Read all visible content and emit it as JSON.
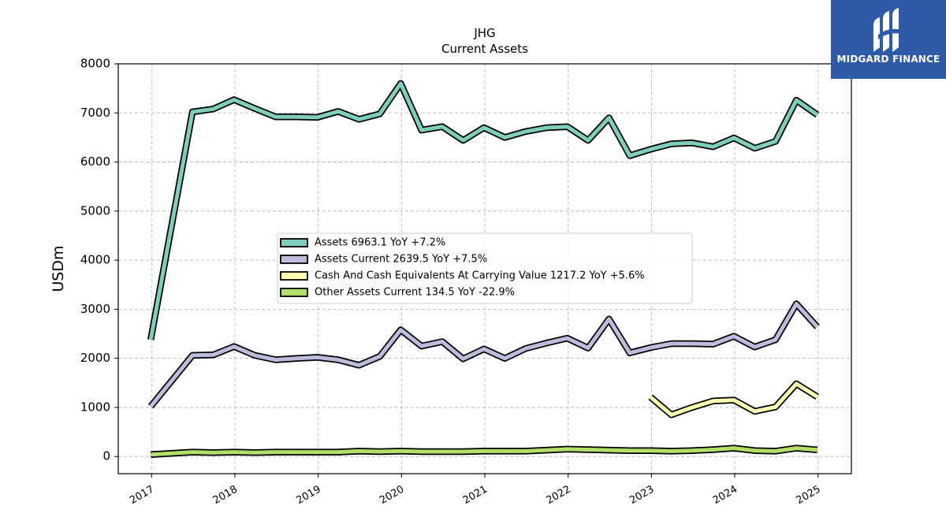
{
  "brand": {
    "name": "MIDGARD FINANCE",
    "color": "#2e5aa8",
    "icon": "midgard-logo-icon"
  },
  "chart_data": {
    "type": "line",
    "title": "JHG",
    "subtitle": "Current  Assets",
    "xlabel": "",
    "ylabel": "USDm",
    "ylim": [
      -350,
      8000
    ],
    "yticks": [
      0,
      1000,
      2000,
      3000,
      4000,
      5000,
      6000,
      7000,
      8000
    ],
    "xlim": [
      2016.6,
      2025.4
    ],
    "xticks": [
      "2017",
      "2018",
      "2019",
      "2020",
      "2021",
      "2022",
      "2023",
      "2024",
      "2025"
    ],
    "grid": true,
    "legend_position": "center",
    "series": [
      {
        "name": "Assets",
        "legend_label": "Assets  6963.1 YoY +7.2%",
        "color": "#7fcdbb",
        "x": [
          2016.99,
          2017.49,
          2017.74,
          2017.99,
          2018.24,
          2018.49,
          2018.74,
          2018.99,
          2019.24,
          2019.49,
          2019.74,
          2019.99,
          2020.24,
          2020.49,
          2020.74,
          2020.99,
          2021.24,
          2021.49,
          2021.74,
          2021.99,
          2022.24,
          2022.49,
          2022.74,
          2022.99,
          2023.24,
          2023.49,
          2023.74,
          2023.99,
          2024.24,
          2024.49,
          2024.74,
          2024.99
        ],
        "y": [
          2380,
          7020,
          7080,
          7270,
          7090,
          6920,
          6920,
          6910,
          7030,
          6870,
          6980,
          7600,
          6650,
          6720,
          6440,
          6700,
          6500,
          6620,
          6700,
          6720,
          6440,
          6900,
          6130,
          6260,
          6370,
          6390,
          6310,
          6490,
          6280,
          6420,
          7260,
          6963.1
        ]
      },
      {
        "name": "Assets Current",
        "legend_label": "Assets Current  2639.5 YoY +7.5%",
        "color": "#bcbddc",
        "x": [
          2016.99,
          2017.49,
          2017.74,
          2017.99,
          2018.24,
          2018.49,
          2018.74,
          2018.99,
          2019.24,
          2019.49,
          2019.74,
          2019.99,
          2020.24,
          2020.49,
          2020.74,
          2020.99,
          2021.24,
          2021.49,
          2021.74,
          2021.99,
          2022.24,
          2022.49,
          2022.74,
          2022.99,
          2023.24,
          2023.49,
          2023.74,
          2023.99,
          2024.24,
          2024.49,
          2024.74,
          2024.99
        ],
        "y": [
          1020,
          2060,
          2070,
          2240,
          2060,
          1970,
          2000,
          2020,
          1970,
          1860,
          2040,
          2580,
          2250,
          2340,
          1990,
          2190,
          2000,
          2200,
          2310,
          2410,
          2210,
          2800,
          2110,
          2220,
          2300,
          2300,
          2290,
          2450,
          2230,
          2380,
          3110,
          2639.5
        ]
      },
      {
        "name": "Cash And Cash Equivalents At Carrying Value",
        "legend_label": "Cash And Cash Equivalents At Carrying Value  1217.2 YoY +5.6%",
        "color": "#ffffb3",
        "x": [
          2022.99,
          2023.24,
          2023.49,
          2023.74,
          2023.99,
          2024.24,
          2024.49,
          2024.74,
          2024.99
        ],
        "y": [
          1210,
          850,
          1000,
          1130,
          1150,
          920,
          1010,
          1480,
          1217.2
        ]
      },
      {
        "name": "Other Assets Current",
        "legend_label": "Other Assets Current  134.5 YoY -22.9%",
        "color": "#b3de69",
        "x": [
          2016.99,
          2017.49,
          2017.74,
          2017.99,
          2018.24,
          2018.49,
          2018.74,
          2018.99,
          2019.24,
          2019.49,
          2019.74,
          2019.99,
          2020.24,
          2020.49,
          2020.74,
          2020.99,
          2021.24,
          2021.49,
          2021.74,
          2021.99,
          2022.24,
          2022.49,
          2022.74,
          2022.99,
          2023.24,
          2023.49,
          2023.74,
          2023.99,
          2024.24,
          2024.49,
          2024.74,
          2024.99
        ],
        "y": [
          40,
          90,
          80,
          90,
          80,
          90,
          90,
          90,
          90,
          110,
          100,
          110,
          100,
          100,
          100,
          110,
          110,
          110,
          130,
          150,
          140,
          130,
          120,
          120,
          110,
          120,
          140,
          170,
          120,
          110,
          170,
          134.5
        ]
      }
    ]
  }
}
